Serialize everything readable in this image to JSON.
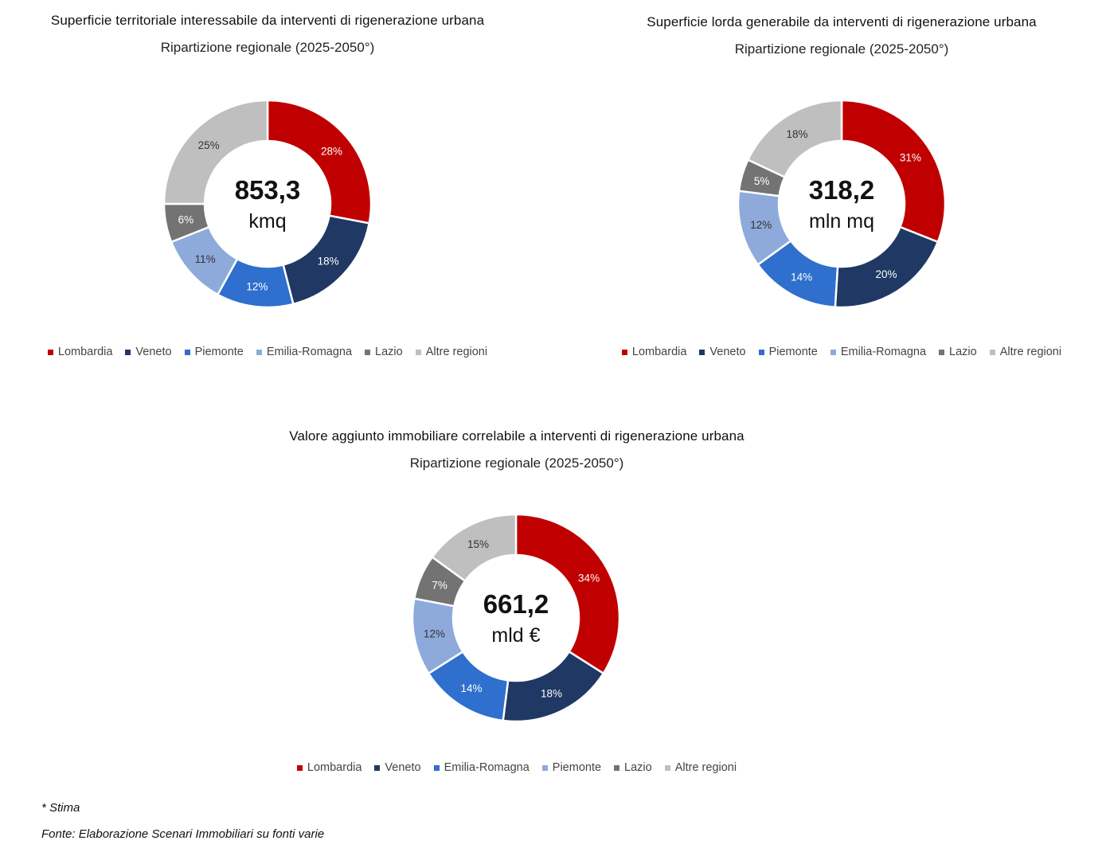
{
  "chart_data": [
    {
      "type": "pie",
      "title": "Superficie territoriale interessabile da interventi di rigenerazione urbana",
      "subtitle": "Ripartizione regionale (2025-2050°)",
      "center_value": "853,3",
      "center_unit": "kmq",
      "categories": [
        "Lombardia",
        "Veneto",
        "Piemonte",
        "Emilia-Romagna",
        "Lazio",
        "Altre regioni"
      ],
      "values": [
        28,
        18,
        12,
        11,
        6,
        25
      ],
      "labels": [
        "28%",
        "18%",
        "12%",
        "11%",
        "6%",
        "25%"
      ],
      "colors": [
        "#c00000",
        "#1f3864",
        "#2f6fcd",
        "#8eaadb",
        "#737373",
        "#bfbfbf"
      ],
      "label_colors": [
        "#ffffff",
        "#ffffff",
        "#ffffff",
        "#333333",
        "#ffffff",
        "#333333"
      ],
      "legend": [
        "Lombardia",
        "Veneto",
        "Piemonte",
        "Emilia-Romagna",
        "Lazio",
        "Altre regioni"
      ],
      "legend_colors": [
        "#c00000",
        "#1f3864",
        "#2f6fcd",
        "#8eaadb",
        "#737373",
        "#bfbfbf"
      ],
      "legend_position": "bottom"
    },
    {
      "type": "pie",
      "title": "Superficie lorda generabile da interventi di rigenerazione urbana",
      "subtitle": "Ripartizione regionale (2025-2050°)",
      "center_value": "318,2",
      "center_unit": "mln mq",
      "categories": [
        "Lombardia",
        "Veneto",
        "Piemonte",
        "Emilia-Romagna",
        "Lazio",
        "Altre regioni"
      ],
      "values": [
        31,
        20,
        14,
        12,
        5,
        18
      ],
      "labels": [
        "31%",
        "20%",
        "14%",
        "12%",
        "5%",
        "18%"
      ],
      "colors": [
        "#c00000",
        "#1f3864",
        "#2f6fcd",
        "#8eaadb",
        "#737373",
        "#bfbfbf"
      ],
      "label_colors": [
        "#ffffff",
        "#ffffff",
        "#ffffff",
        "#333333",
        "#ffffff",
        "#333333"
      ],
      "legend": [
        "Lombardia",
        "Veneto",
        "Piemonte",
        "Emilia-Romagna",
        "Lazio",
        "Altre regioni"
      ],
      "legend_colors": [
        "#c00000",
        "#1f3864",
        "#2f6fcd",
        "#8eaadb",
        "#737373",
        "#bfbfbf"
      ],
      "legend_position": "bottom"
    },
    {
      "type": "pie",
      "title": "Valore aggiunto immobiliare correlabile a interventi di rigenerazione urbana",
      "subtitle": "Ripartizione regionale (2025-2050°)",
      "center_value": "661,2",
      "center_unit": "mld €",
      "categories": [
        "Lombardia",
        "Veneto",
        "Emilia-Romagna",
        "Piemonte",
        "Lazio",
        "Altre regioni"
      ],
      "values": [
        34,
        18,
        14,
        12,
        7,
        15
      ],
      "labels": [
        "34%",
        "18%",
        "14%",
        "12%",
        "7%",
        "15%"
      ],
      "colors": [
        "#c00000",
        "#1f3864",
        "#2f6fcd",
        "#8eaadb",
        "#737373",
        "#bfbfbf"
      ],
      "label_colors": [
        "#ffffff",
        "#ffffff",
        "#ffffff",
        "#333333",
        "#ffffff",
        "#333333"
      ],
      "legend": [
        "Lombardia",
        "Veneto",
        "Emilia-Romagna",
        "Piemonte",
        "Lazio",
        "Altre regioni"
      ],
      "legend_colors": [
        "#c00000",
        "#1f3864",
        "#2f6fcd",
        "#8eaadb",
        "#737373",
        "#bfbfbf"
      ],
      "legend_position": "bottom"
    }
  ],
  "footnotes": {
    "stima": "* Stima",
    "fonte": "Fonte: Elaborazione Scenari Immobiliari su fonti varie"
  }
}
